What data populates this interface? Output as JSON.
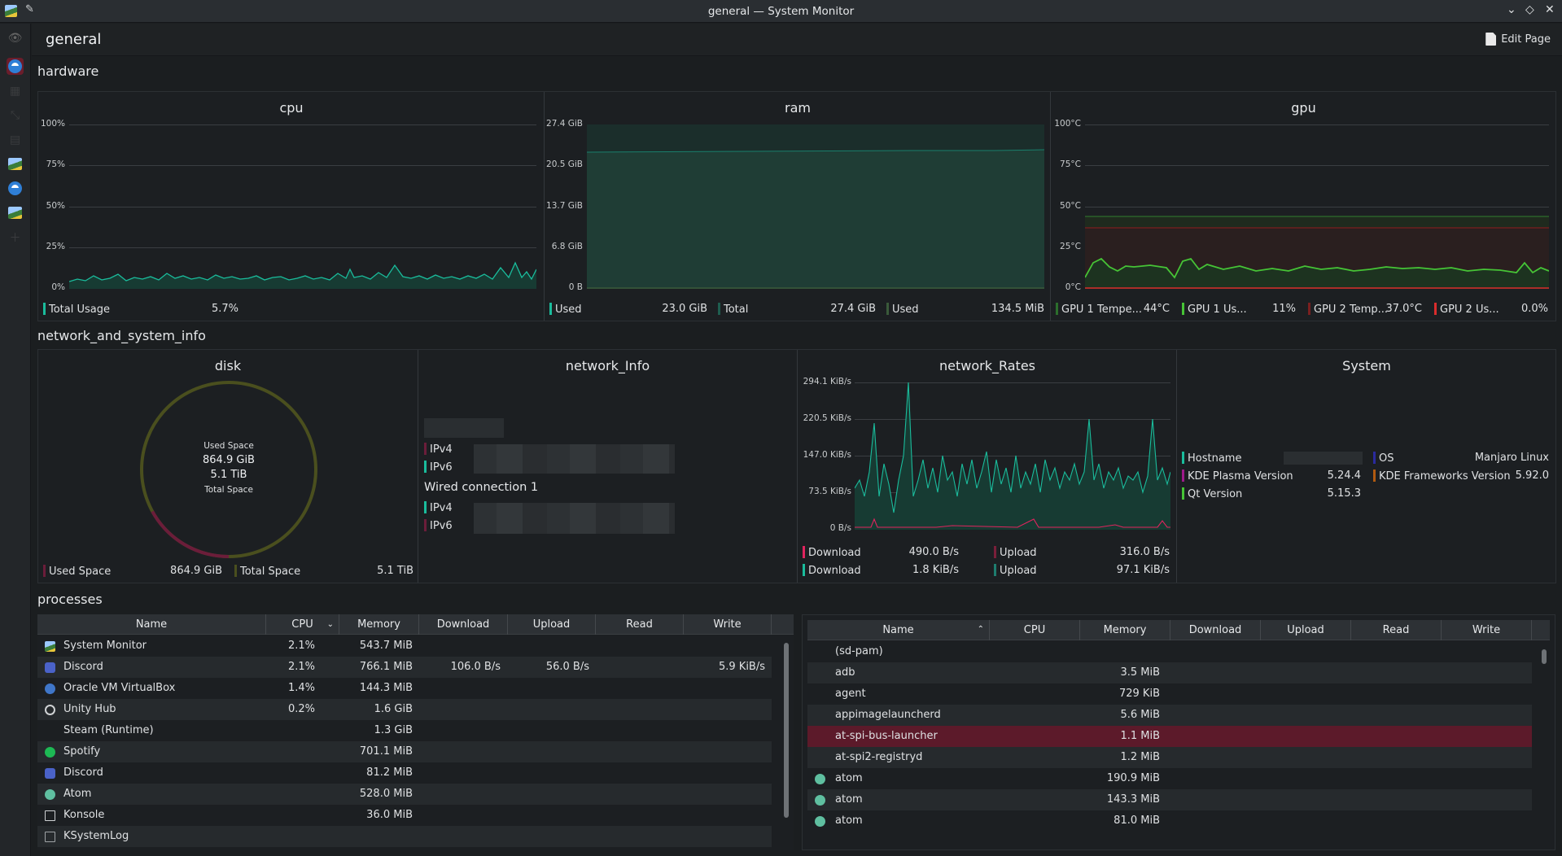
{
  "window": {
    "title": "general — System Monitor"
  },
  "header": {
    "page_title": "general",
    "edit_label": "Edit Page"
  },
  "sections": {
    "hardware": "hardware",
    "network": "network_and_system_info",
    "processes": "processes"
  },
  "cpu": {
    "title": "cpu",
    "yticks": [
      "100%",
      "75%",
      "50%",
      "25%",
      "0%"
    ],
    "legend": [
      {
        "label": "Total Usage",
        "value": "5.7%",
        "color": "#1abc9c"
      }
    ]
  },
  "ram": {
    "title": "ram",
    "yticks": [
      "27.4 GiB",
      "20.5 GiB",
      "13.7 GiB",
      "6.8 GiB",
      "0 B"
    ],
    "legend": [
      {
        "label": "Used",
        "value": "23.0 GiB",
        "color": "#1abc9c"
      },
      {
        "label": "Total",
        "value": "27.4 GiB",
        "color": "#1e5d4f"
      },
      {
        "label": "Used",
        "value": "134.5 MiB",
        "color": "#3a5a3a"
      }
    ]
  },
  "gpu": {
    "title": "gpu",
    "yticks": [
      "100°C",
      "75°C",
      "50°C",
      "25°C",
      "0°C"
    ],
    "legend": [
      {
        "label": "GPU 1 Tempe...",
        "value": "44°C",
        "color": "#2c6e2c"
      },
      {
        "label": "GPU 1 Us...",
        "value": "11%",
        "color": "#46c436"
      },
      {
        "label": "GPU 2 Temp...",
        "value": "37.0°C",
        "color": "#7a1f1f"
      },
      {
        "label": "GPU 2 Us...",
        "value": "0.0%",
        "color": "#da2c2c"
      }
    ]
  },
  "disk": {
    "title": "disk",
    "used_fraction": 0.17,
    "center": [
      "Used Space",
      "864.9 GiB",
      "5.1 TiB",
      "Total Space"
    ],
    "legend": [
      {
        "label": "Used Space",
        "value": "864.9 GiB",
        "color": "#6b1d3a"
      },
      {
        "label": "Total Space",
        "value": "5.1 TiB",
        "color": "#4a4f1e"
      }
    ]
  },
  "network_info": {
    "title": "network_Info",
    "connection": "Wired connection 1",
    "ipv4": "IPv4",
    "ipv6": "IPv6"
  },
  "network_rates": {
    "title": "network_Rates",
    "yticks": [
      "294.1 KiB/s",
      "220.5 KiB/s",
      "147.0 KiB/s",
      "73.5 KiB/s",
      "0 B/s"
    ],
    "legend": [
      {
        "label": "Download",
        "value": "490.0 B/s",
        "color": "#e0245e"
      },
      {
        "label": "Upload",
        "value": "316.0 B/s",
        "color": "#7a1f3a"
      },
      {
        "label": "Download",
        "value": "1.8 KiB/s",
        "color": "#1abc9c"
      },
      {
        "label": "Upload",
        "value": "97.1 KiB/s",
        "color": "#1e7d6f"
      }
    ]
  },
  "system": {
    "title": "System",
    "rows": [
      {
        "label": "Hostname",
        "value": "",
        "color": "#1abc9c"
      },
      {
        "label": "OS",
        "value": "Manjaro Linux",
        "color": "#2a2a9e"
      },
      {
        "label": "KDE Plasma Version",
        "value": "5.24.4",
        "color": "#9e1a8a"
      },
      {
        "label": "KDE Frameworks Version",
        "value": "5.92.0",
        "color": "#b05a10"
      },
      {
        "label": "Qt Version",
        "value": "5.15.3",
        "color": "#46c436"
      }
    ]
  },
  "proc_left": {
    "columns": [
      "Name",
      "CPU",
      "Memory",
      "Download",
      "Upload",
      "Read",
      "Write"
    ],
    "rows": [
      {
        "name": "System Monitor",
        "cpu": "2.1%",
        "mem": "543.7 MiB",
        "dl": "",
        "ul": "",
        "rd": "",
        "wr": "",
        "icon": "system-monitor-icon"
      },
      {
        "name": "Discord",
        "cpu": "2.1%",
        "mem": "766.1 MiB",
        "dl": "106.0 B/s",
        "ul": "56.0 B/s",
        "rd": "",
        "wr": "5.9 KiB/s",
        "icon": "discord-icon"
      },
      {
        "name": "Oracle VM VirtualBox",
        "cpu": "1.4%",
        "mem": "144.3 MiB",
        "dl": "",
        "ul": "",
        "rd": "",
        "wr": "",
        "icon": "virtualbox-icon"
      },
      {
        "name": "Unity Hub",
        "cpu": "0.2%",
        "mem": "1.6 GiB",
        "dl": "",
        "ul": "",
        "rd": "",
        "wr": "",
        "icon": "unity-icon"
      },
      {
        "name": "Steam (Runtime)",
        "cpu": "",
        "mem": "1.3 GiB",
        "dl": "",
        "ul": "",
        "rd": "",
        "wr": "",
        "icon": "steam-icon"
      },
      {
        "name": "Spotify",
        "cpu": "",
        "mem": "701.1 MiB",
        "dl": "",
        "ul": "",
        "rd": "",
        "wr": "",
        "icon": "spotify-icon"
      },
      {
        "name": "Discord",
        "cpu": "",
        "mem": "81.2 MiB",
        "dl": "",
        "ul": "",
        "rd": "",
        "wr": "",
        "icon": "discord-icon"
      },
      {
        "name": "Atom",
        "cpu": "",
        "mem": "528.0 MiB",
        "dl": "",
        "ul": "",
        "rd": "",
        "wr": "",
        "icon": "atom-icon"
      },
      {
        "name": "Konsole",
        "cpu": "",
        "mem": "36.0 MiB",
        "dl": "",
        "ul": "",
        "rd": "",
        "wr": "",
        "icon": "konsole-icon"
      },
      {
        "name": "KSystemLog",
        "cpu": "",
        "mem": "",
        "dl": "",
        "ul": "",
        "rd": "",
        "wr": "",
        "icon": "ksystemlog-icon"
      }
    ]
  },
  "proc_right": {
    "columns": [
      "Name",
      "CPU",
      "Memory",
      "Download",
      "Upload",
      "Read",
      "Write"
    ],
    "selected": "at-spi-bus-launcher",
    "rows": [
      {
        "name": "(sd-pam)",
        "mem": "",
        "icon": ""
      },
      {
        "name": "adb",
        "mem": "3.5 MiB",
        "icon": ""
      },
      {
        "name": "agent",
        "mem": "729 KiB",
        "icon": ""
      },
      {
        "name": "appimagelauncherd",
        "mem": "5.6 MiB",
        "icon": ""
      },
      {
        "name": "at-spi-bus-launcher",
        "mem": "1.1 MiB",
        "icon": ""
      },
      {
        "name": "at-spi2-registryd",
        "mem": "1.2 MiB",
        "icon": ""
      },
      {
        "name": "atom",
        "mem": "190.9 MiB",
        "icon": "atom-icon"
      },
      {
        "name": "atom",
        "mem": "143.3 MiB",
        "icon": "atom-icon"
      },
      {
        "name": "atom",
        "mem": "81.0 MiB",
        "icon": "atom-icon"
      }
    ]
  },
  "colors": {
    "accent": "#1abc9c",
    "selection": "#5c1a2a",
    "gpu_line": "#46c436",
    "ram_fill": "#1f3d35"
  }
}
